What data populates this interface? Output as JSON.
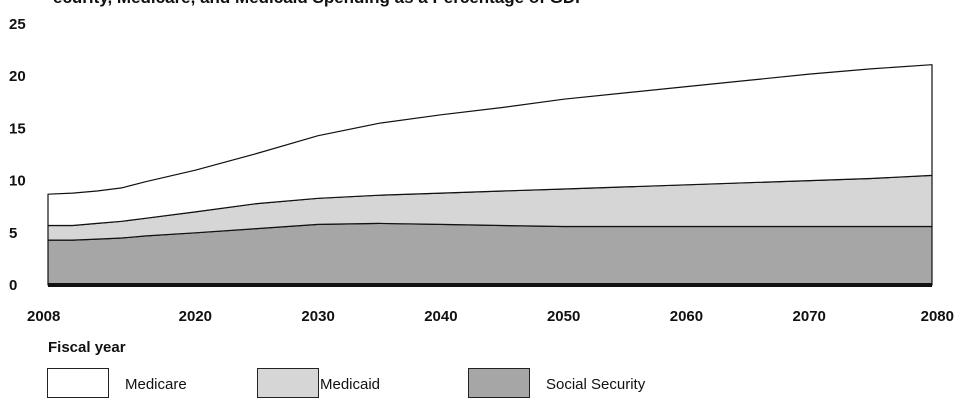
{
  "chart_data": {
    "type": "area",
    "stacked": true,
    "title_fragment": "ecurity, Medicare, and Medicaid Spending as a Percentage of GDP",
    "xlabel": "Fiscal year",
    "ylabel": "",
    "xlim": [
      2008,
      2080
    ],
    "ylim": [
      0,
      25
    ],
    "xticks": [
      "2008",
      "2020",
      "2030",
      "2040",
      "2050",
      "2060",
      "2070",
      "2080"
    ],
    "yticks": [
      "0",
      "5",
      "10",
      "15",
      "20",
      "25"
    ],
    "x": [
      2008,
      2010,
      2012,
      2014,
      2016,
      2020,
      2025,
      2030,
      2035,
      2040,
      2045,
      2050,
      2055,
      2060,
      2065,
      2070,
      2075,
      2080
    ],
    "series": [
      {
        "name": "Social Security",
        "color": "#a6a6a6",
        "values": [
          4.3,
          4.3,
          4.4,
          4.5,
          4.7,
          5.0,
          5.4,
          5.8,
          5.9,
          5.8,
          5.7,
          5.6,
          5.6,
          5.6,
          5.6,
          5.6,
          5.6,
          5.6
        ]
      },
      {
        "name": "Medicaid",
        "color": "#d6d6d6",
        "values": [
          1.4,
          1.4,
          1.5,
          1.6,
          1.7,
          2.0,
          2.4,
          2.5,
          2.7,
          3.0,
          3.3,
          3.6,
          3.8,
          4.0,
          4.2,
          4.4,
          4.6,
          4.9
        ]
      },
      {
        "name": "Medicare",
        "color": "#ffffff",
        "values": [
          3.0,
          3.1,
          3.1,
          3.2,
          3.5,
          4.0,
          4.8,
          6.0,
          6.9,
          7.5,
          8.0,
          8.6,
          9.0,
          9.4,
          9.8,
          10.2,
          10.5,
          10.6
        ]
      }
    ],
    "legend": [
      {
        "name": "Medicare",
        "color": "#ffffff"
      },
      {
        "name": "Medicaid",
        "color": "#d6d6d6"
      },
      {
        "name": "Social Security",
        "color": "#a6a6a6"
      }
    ],
    "legend_position": "bottom",
    "grid": false
  }
}
